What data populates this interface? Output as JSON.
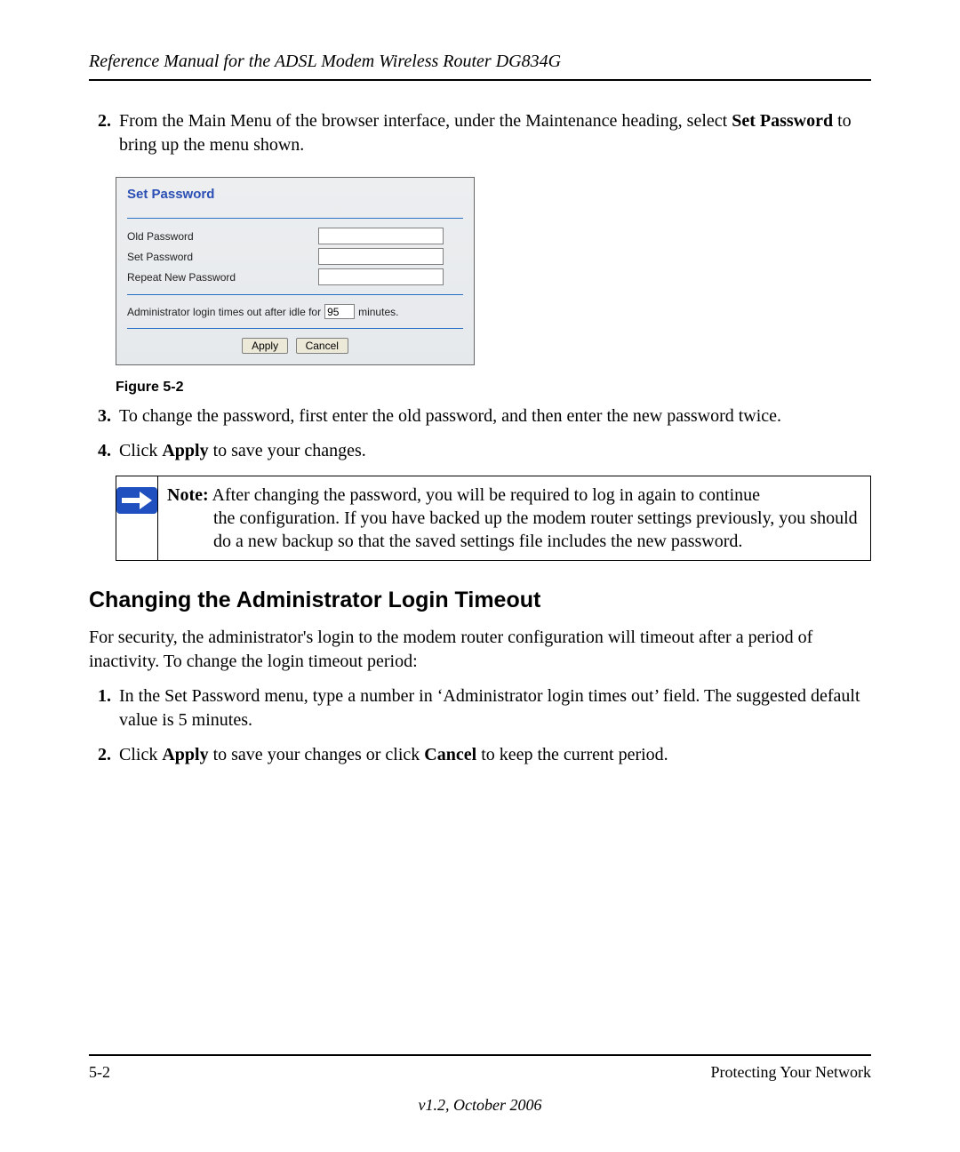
{
  "header": {
    "running_title": "Reference Manual for the ADSL Modem Wireless Router DG834G"
  },
  "list1": {
    "start": 2,
    "items": [
      {
        "pre": "From the Main Menu of the browser interface, under the Maintenance heading, select ",
        "bold1": "Set Password",
        "post": " to bring up the menu shown."
      }
    ]
  },
  "screenshot": {
    "title": "Set Password",
    "rows": {
      "old_label": "Old Password",
      "set_label": "Set Password",
      "repeat_label": "Repeat New Password"
    },
    "timeout": {
      "pre": "Administrator login times out after idle for",
      "value": "95",
      "post": "minutes."
    },
    "buttons": {
      "apply": "Apply",
      "cancel": "Cancel"
    }
  },
  "figure_caption": "Figure 5-2",
  "list2": {
    "start": 3,
    "items": [
      {
        "text": "To change the password, first enter the old password, and then enter the new password twice."
      },
      {
        "pre": "Click ",
        "bold1": "Apply",
        "post": " to save your changes."
      }
    ]
  },
  "note": {
    "label": "Note:",
    "line1": " After changing the password, you will be required to log in again to continue",
    "rest": "the configuration. If you have backed up the modem router settings previously, you should do a new backup so that the saved settings file includes the new password."
  },
  "section_heading": "Changing the Administrator Login Timeout",
  "section_para": "For security, the administrator's login to the modem router configuration will timeout after a period of inactivity. To change the login timeout period:",
  "list3": {
    "start": 1,
    "items": [
      {
        "text": "In the Set Password menu, type a number in ‘Administrator login times out’ field. The suggested default value is 5 minutes."
      },
      {
        "pre": "Click ",
        "bold1": "Apply",
        "mid": " to save your changes or click ",
        "bold2": "Cancel",
        "post": " to keep the current period."
      }
    ]
  },
  "footer": {
    "page_num": "5-2",
    "chapter": "Protecting Your Network",
    "version": "v1.2, October 2006"
  }
}
